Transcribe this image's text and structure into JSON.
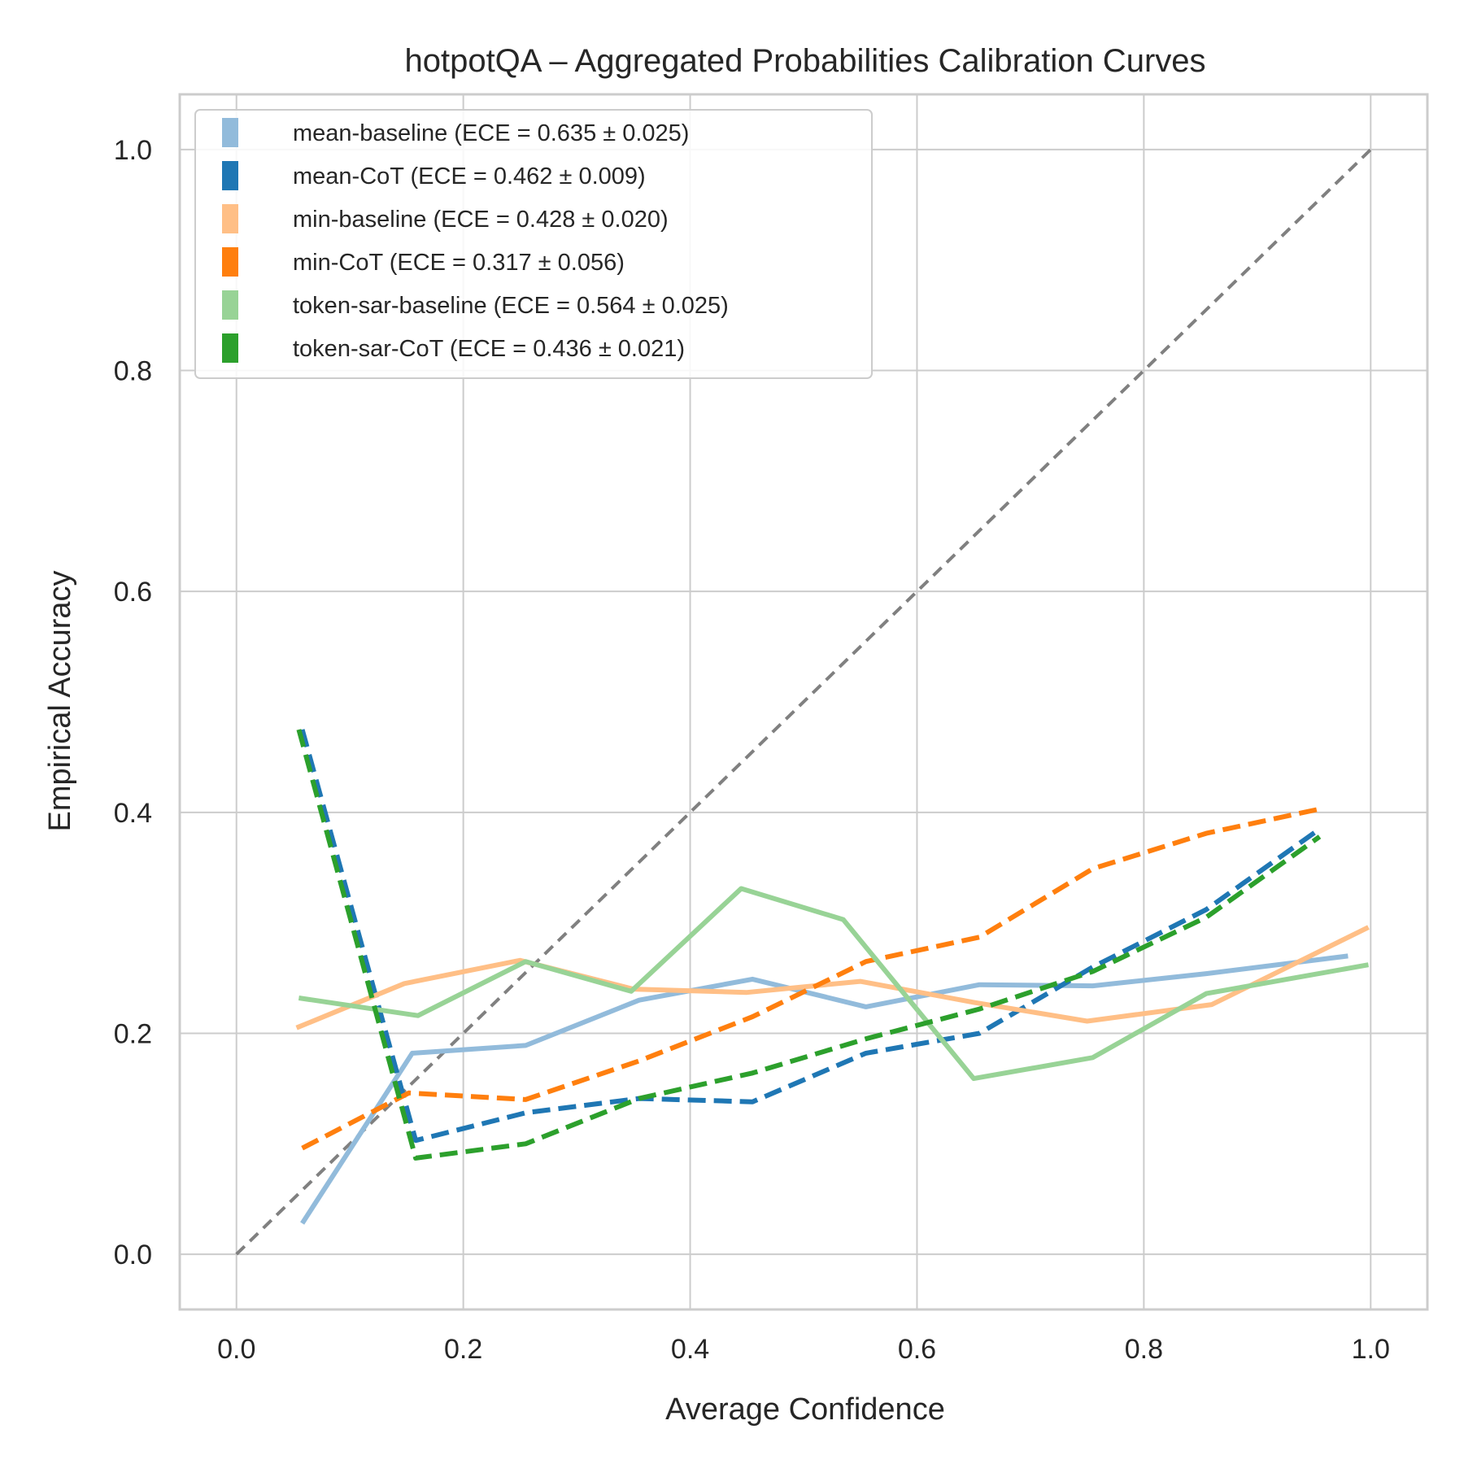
{
  "chart_data": {
    "type": "line",
    "title": "hotpotQA – Aggregated Probabilities Calibration Curves",
    "xlabel": "Average Confidence",
    "ylabel": "Empirical Accuracy",
    "xlim": [
      -0.05,
      1.05
    ],
    "ylim": [
      -0.05,
      1.05
    ],
    "xticks": [
      0.0,
      0.2,
      0.4,
      0.6,
      0.8,
      1.0
    ],
    "yticks": [
      0.0,
      0.2,
      0.4,
      0.6,
      0.8,
      1.0
    ],
    "xtick_labels": [
      "0.0",
      "0.2",
      "0.4",
      "0.6",
      "0.8",
      "1.0"
    ],
    "ytick_labels": [
      "0.0",
      "0.2",
      "0.4",
      "0.6",
      "0.8",
      "1.0"
    ],
    "grid": true,
    "legend_position": "top-left",
    "reference_line": {
      "x": [
        0,
        1
      ],
      "y": [
        0,
        1
      ],
      "color": "#808080",
      "style": "dashed"
    },
    "series": [
      {
        "name": "mean-baseline (ECE = 0.635 ± 0.025)",
        "color": "#92bbdb",
        "style": "solid",
        "x": [
          0.058,
          0.155,
          0.255,
          0.355,
          0.455,
          0.555,
          0.655,
          0.755,
          0.855,
          0.98
        ],
        "y": [
          0.028,
          0.182,
          0.189,
          0.23,
          0.249,
          0.224,
          0.244,
          0.243,
          0.254,
          0.27
        ]
      },
      {
        "name": "mean-CoT (ECE = 0.462 ± 0.009)",
        "color": "#1f77b4",
        "style": "dashed",
        "x": [
          0.058,
          0.158,
          0.255,
          0.355,
          0.455,
          0.555,
          0.655,
          0.755,
          0.855,
          0.955
        ],
        "y": [
          0.475,
          0.103,
          0.128,
          0.141,
          0.138,
          0.182,
          0.2,
          0.26,
          0.312,
          0.385
        ]
      },
      {
        "name": "min-baseline (ECE = 0.428 ± 0.020)",
        "color": "#ffbf86",
        "style": "solid",
        "x": [
          0.053,
          0.148,
          0.25,
          0.35,
          0.45,
          0.55,
          0.65,
          0.75,
          0.86,
          0.998
        ],
        "y": [
          0.205,
          0.245,
          0.266,
          0.24,
          0.237,
          0.247,
          0.228,
          0.211,
          0.226,
          0.296
        ]
      },
      {
        "name": "min-CoT (ECE = 0.317 ± 0.056)",
        "color": "#ff7f0e",
        "style": "dashed",
        "x": [
          0.058,
          0.152,
          0.255,
          0.355,
          0.455,
          0.555,
          0.655,
          0.755,
          0.855,
          0.955
        ],
        "y": [
          0.096,
          0.146,
          0.14,
          0.175,
          0.215,
          0.265,
          0.287,
          0.349,
          0.381,
          0.403
        ]
      },
      {
        "name": "token-sar-baseline (ECE = 0.564 ± 0.025)",
        "color": "#98d396",
        "style": "solid",
        "x": [
          0.055,
          0.16,
          0.255,
          0.348,
          0.445,
          0.535,
          0.65,
          0.755,
          0.855,
          0.998
        ],
        "y": [
          0.232,
          0.216,
          0.265,
          0.238,
          0.331,
          0.303,
          0.159,
          0.178,
          0.236,
          0.262
        ]
      },
      {
        "name": "token-sar-CoT (ECE = 0.436 ± 0.021)",
        "color": "#2ca02c",
        "style": "dashed",
        "x": [
          0.055,
          0.158,
          0.255,
          0.355,
          0.455,
          0.555,
          0.655,
          0.755,
          0.855,
          0.955
        ],
        "y": [
          0.475,
          0.087,
          0.1,
          0.141,
          0.164,
          0.195,
          0.222,
          0.256,
          0.305,
          0.378
        ]
      }
    ]
  }
}
